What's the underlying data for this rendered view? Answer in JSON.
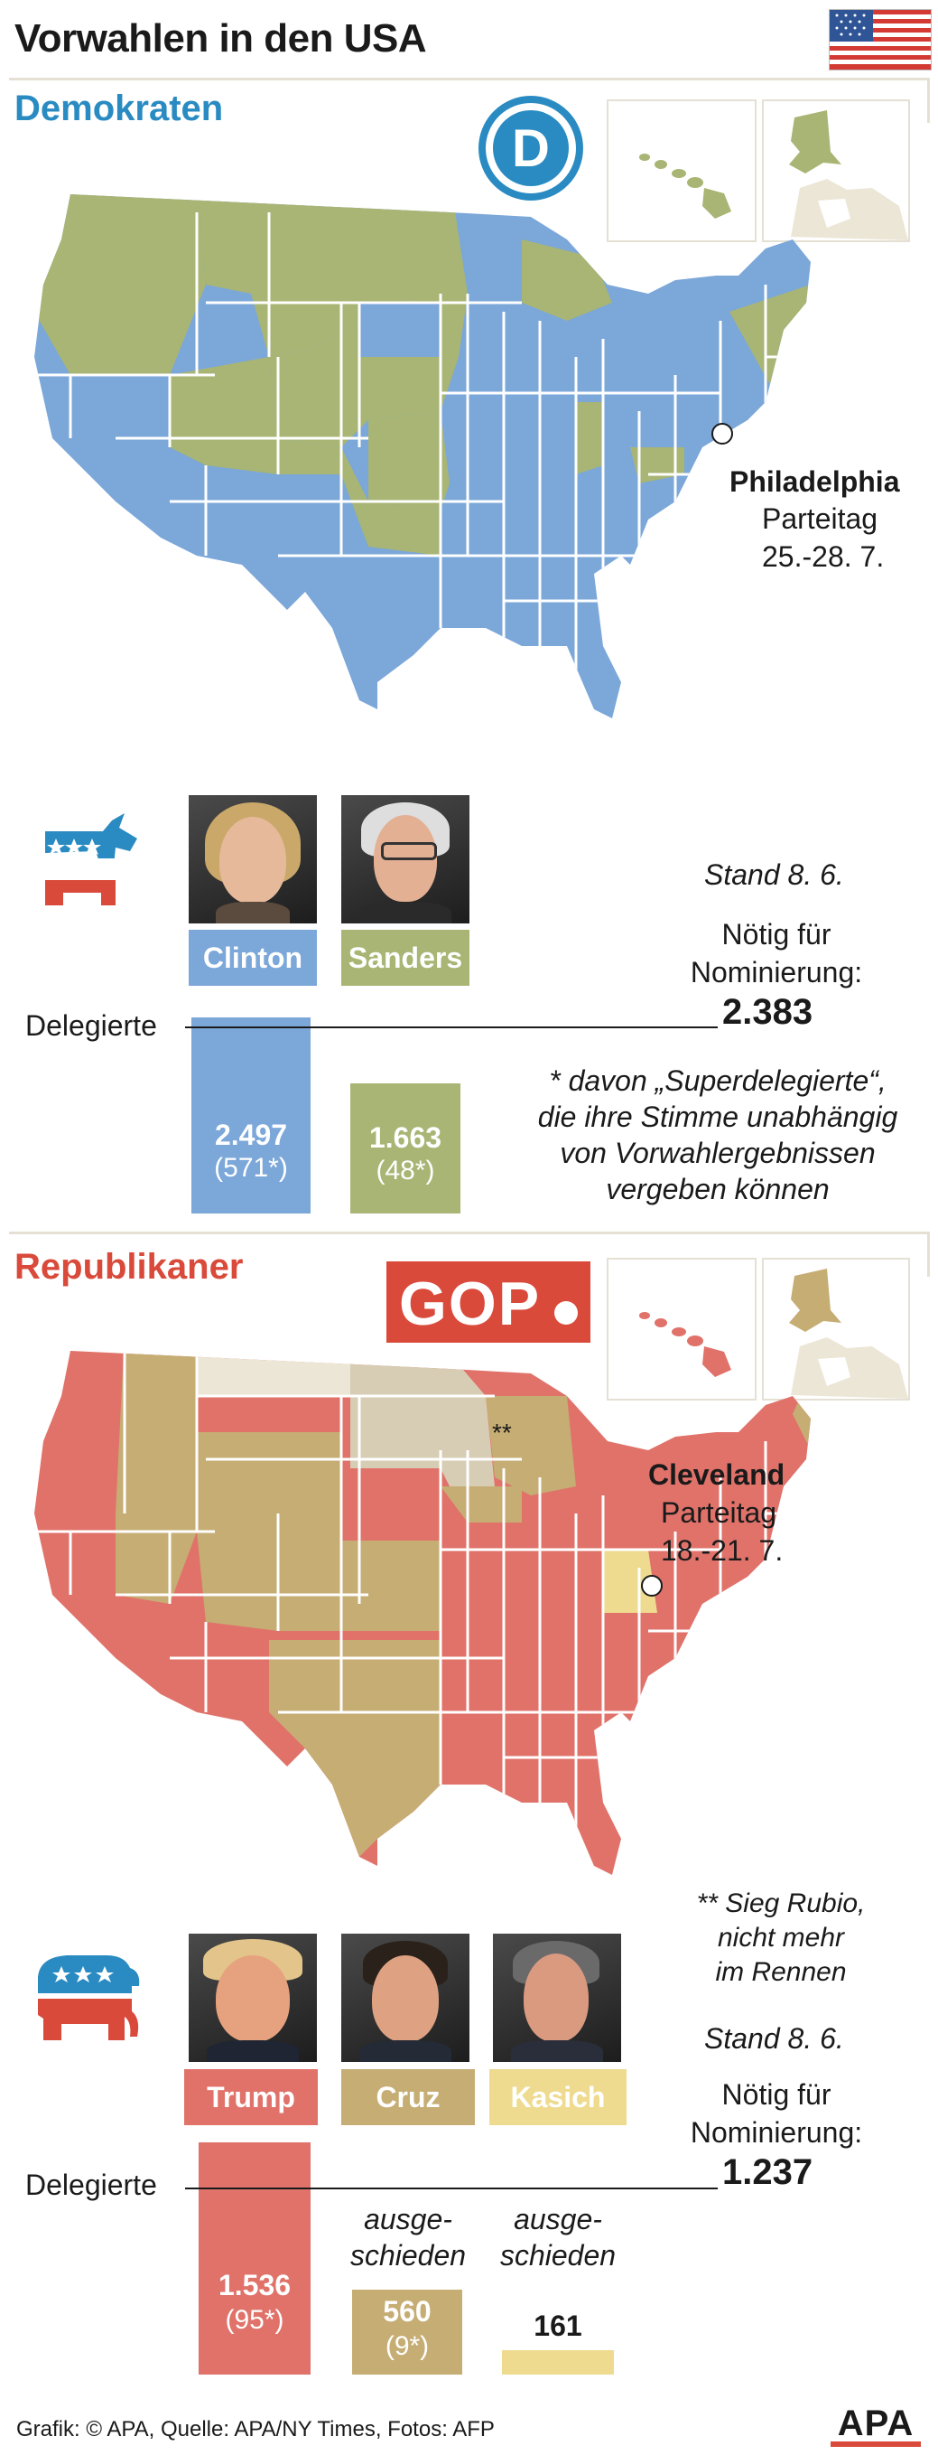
{
  "title": "Vorwahlen in den USA",
  "colors": {
    "dem_blue": "#7ba7d9",
    "dem_green": "#a8b574",
    "rep_red": "#e0726a",
    "rep_tan": "#c6ad74",
    "rep_yellow": "#eedb8f",
    "rep_beige": "#ece6d6",
    "dem_logo": "#2a8bc2",
    "gop_logo": "#d94a3b"
  },
  "democrats": {
    "heading": "Demokraten",
    "logo_letter": "D",
    "convention_city": "Philadelphia",
    "convention_label": "Parteitag",
    "convention_dates": "25.-28. 7.",
    "status": "Stand 8. 6.",
    "needed_label_line1": "Nötig für",
    "needed_label_line2": "Nominierung:",
    "needed_value": "2.383",
    "delegates_label": "Delegierte",
    "note_line1": "* davon „Superdelegierte“,",
    "note_line2": "die ihre Stimme unabhängig",
    "note_line3": "von Vorwahlergebnissen",
    "note_line4": "vergeben können",
    "candidates": [
      {
        "name": "Clinton",
        "delegates": "2.497",
        "super": "(571*)"
      },
      {
        "name": "Sanders",
        "delegates": "1.663",
        "super": "(48*)"
      }
    ]
  },
  "republicans": {
    "heading": "Republikaner",
    "logo_text": "GOP",
    "convention_city": "Cleveland",
    "convention_label": "Parteitag",
    "convention_dates": "18.-21. 7.",
    "map_mark": "**",
    "rubio_line1": "** Sieg Rubio,",
    "rubio_line2": "nicht mehr",
    "rubio_line3": "im Rennen",
    "status": "Stand 8. 6.",
    "needed_label_line1": "Nötig für",
    "needed_label_line2": "Nominierung:",
    "needed_value": "1.237",
    "delegates_label": "Delegierte",
    "candidates": [
      {
        "name": "Trump",
        "delegates": "1.536",
        "super": "(95*)",
        "status1": "",
        "status2": ""
      },
      {
        "name": "Cruz",
        "delegates": "560",
        "super": "(9*)",
        "status1": "ausge-",
        "status2": "schieden"
      },
      {
        "name": "Kasich",
        "delegates": "161",
        "super": "",
        "status1": "ausge-",
        "status2": "schieden"
      }
    ]
  },
  "footer": {
    "credit": "Grafik: © APA, Quelle: APA/NY Times, Fotos: AFP",
    "logo": "APA"
  },
  "chart_data": [
    {
      "type": "bar",
      "title": "Demokraten",
      "categories": [
        "Clinton",
        "Sanders"
      ],
      "values": [
        2497,
        1663
      ],
      "superdelegates": [
        571,
        48
      ],
      "threshold": 2383,
      "ylabel": "Delegierte"
    },
    {
      "type": "bar",
      "title": "Republikaner",
      "categories": [
        "Trump",
        "Cruz",
        "Kasich"
      ],
      "values": [
        1536,
        560,
        161
      ],
      "superdelegates": [
        95,
        9,
        null
      ],
      "threshold": 1237,
      "ylabel": "Delegierte"
    }
  ]
}
